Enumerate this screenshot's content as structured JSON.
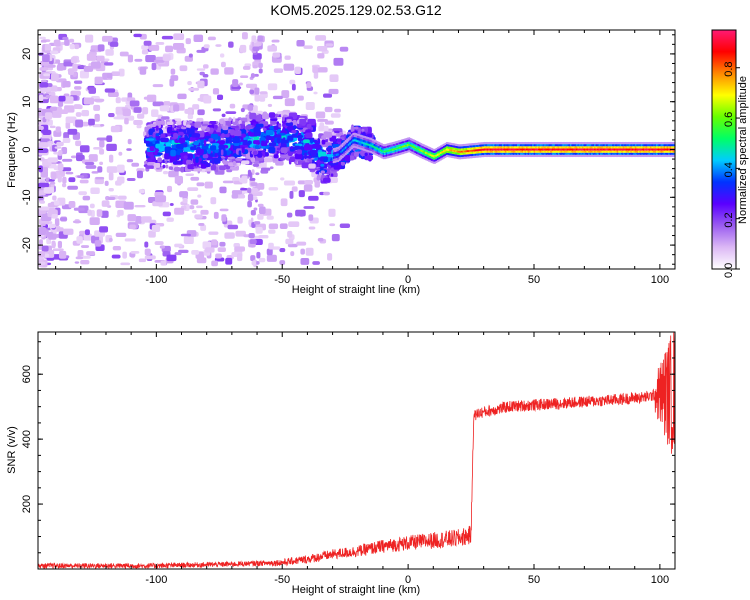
{
  "title": "KOM5.2025.129.02.53.G12",
  "chart_data": [
    {
      "type": "heatmap",
      "xlabel": "Height of straight line (km)",
      "ylabel": "Frequency (Hz)",
      "xlim": [
        -147,
        106
      ],
      "ylim": [
        -25,
        25
      ],
      "xticks": [
        -100,
        -50,
        0,
        50,
        100
      ],
      "yticks": [
        -20,
        -10,
        0,
        10,
        20
      ],
      "colorbar": {
        "label": "Normalized spectral amplitude",
        "range": [
          0,
          0.95
        ],
        "ticks": [
          "0.0",
          "0.2",
          "0.4",
          "0.6",
          "0.8"
        ],
        "colors": [
          "#ffffff",
          "#dcb8f5",
          "#9a5cf0",
          "#5a00ff",
          "#0033ff",
          "#00ccff",
          "#00ff66",
          "#66ff00",
          "#ffff00",
          "#ff8800",
          "#ff0000",
          "#ff1a75"
        ]
      },
      "ridge": [
        {
          "x": -145,
          "y": 0
        },
        {
          "x": -100,
          "y": 1
        },
        {
          "x": -80,
          "y": 0.5
        },
        {
          "x": -65,
          "y": 2
        },
        {
          "x": -50,
          "y": 3
        },
        {
          "x": -40,
          "y": 1
        },
        {
          "x": -35,
          "y": -2
        },
        {
          "x": -28,
          "y": -1
        },
        {
          "x": -22,
          "y": 2
        },
        {
          "x": -15,
          "y": 0.8
        },
        {
          "x": -10,
          "y": -0.5
        },
        {
          "x": -5,
          "y": 0.2
        },
        {
          "x": 0,
          "y": 1
        },
        {
          "x": 5,
          "y": -0.3
        },
        {
          "x": 10,
          "y": -1.5
        },
        {
          "x": 15,
          "y": 0
        },
        {
          "x": 20,
          "y": -0.5
        },
        {
          "x": 30,
          "y": 0
        },
        {
          "x": 106,
          "y": 0
        }
      ]
    },
    {
      "type": "line",
      "xlabel": "Height of straight line (km)",
      "ylabel": "SNR (v/v)",
      "xlim": [
        -147,
        106
      ],
      "ylim": [
        0,
        730
      ],
      "xticks": [
        -100,
        -50,
        0,
        50,
        100
      ],
      "yticks": [
        200,
        400,
        600
      ],
      "series": [
        {
          "color": "#ee2222",
          "trend": [
            {
              "x": -147,
              "y": 10
            },
            {
              "x": -100,
              "y": 10
            },
            {
              "x": -70,
              "y": 15
            },
            {
              "x": -50,
              "y": 20
            },
            {
              "x": -40,
              "y": 30
            },
            {
              "x": -30,
              "y": 45
            },
            {
              "x": -20,
              "y": 55
            },
            {
              "x": -10,
              "y": 70
            },
            {
              "x": 0,
              "y": 80
            },
            {
              "x": 10,
              "y": 88
            },
            {
              "x": 20,
              "y": 95
            },
            {
              "x": 25,
              "y": 105
            },
            {
              "x": 26,
              "y": 470
            },
            {
              "x": 28,
              "y": 480
            },
            {
              "x": 40,
              "y": 500
            },
            {
              "x": 60,
              "y": 510
            },
            {
              "x": 80,
              "y": 520
            },
            {
              "x": 95,
              "y": 530
            },
            {
              "x": 100,
              "y": 540
            },
            {
              "x": 106,
              "y": 545
            }
          ]
        }
      ]
    }
  ]
}
